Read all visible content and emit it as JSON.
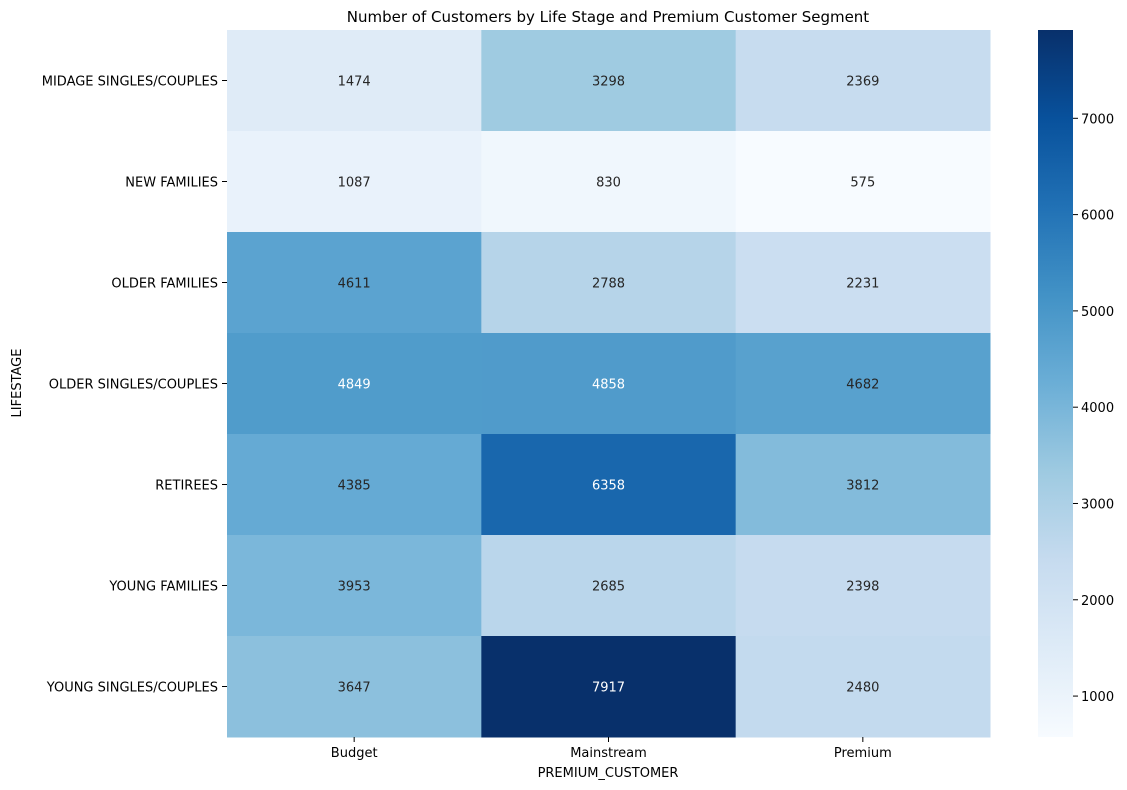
{
  "chart_data": {
    "type": "heatmap",
    "title": "Number of Customers by Life Stage and Premium Customer Segment",
    "xlabel": "PREMIUM_CUSTOMER",
    "ylabel": "LIFESTAGE",
    "x_categories": [
      "Budget",
      "Mainstream",
      "Premium"
    ],
    "y_categories": [
      "MIDAGE SINGLES/COUPLES",
      "NEW FAMILIES",
      "OLDER FAMILIES",
      "OLDER SINGLES/COUPLES",
      "RETIREES",
      "YOUNG FAMILIES",
      "YOUNG SINGLES/COUPLES"
    ],
    "values": [
      [
        1474,
        3298,
        2369
      ],
      [
        1087,
        830,
        575
      ],
      [
        4611,
        2788,
        2231
      ],
      [
        4849,
        4858,
        4682
      ],
      [
        4385,
        6358,
        3812
      ],
      [
        3953,
        2685,
        2398
      ],
      [
        3647,
        7917,
        2480
      ]
    ],
    "colormap": "Blues",
    "colormap_stops": [
      "#f7fbff",
      "#deebf7",
      "#c6dbef",
      "#9ecae1",
      "#6baed6",
      "#4292c6",
      "#2171b5",
      "#08519c",
      "#08306b"
    ],
    "color_range": [
      575,
      7917
    ],
    "colorbar_ticks": [
      1000,
      2000,
      3000,
      4000,
      5000,
      6000,
      7000
    ],
    "annotations": true
  }
}
